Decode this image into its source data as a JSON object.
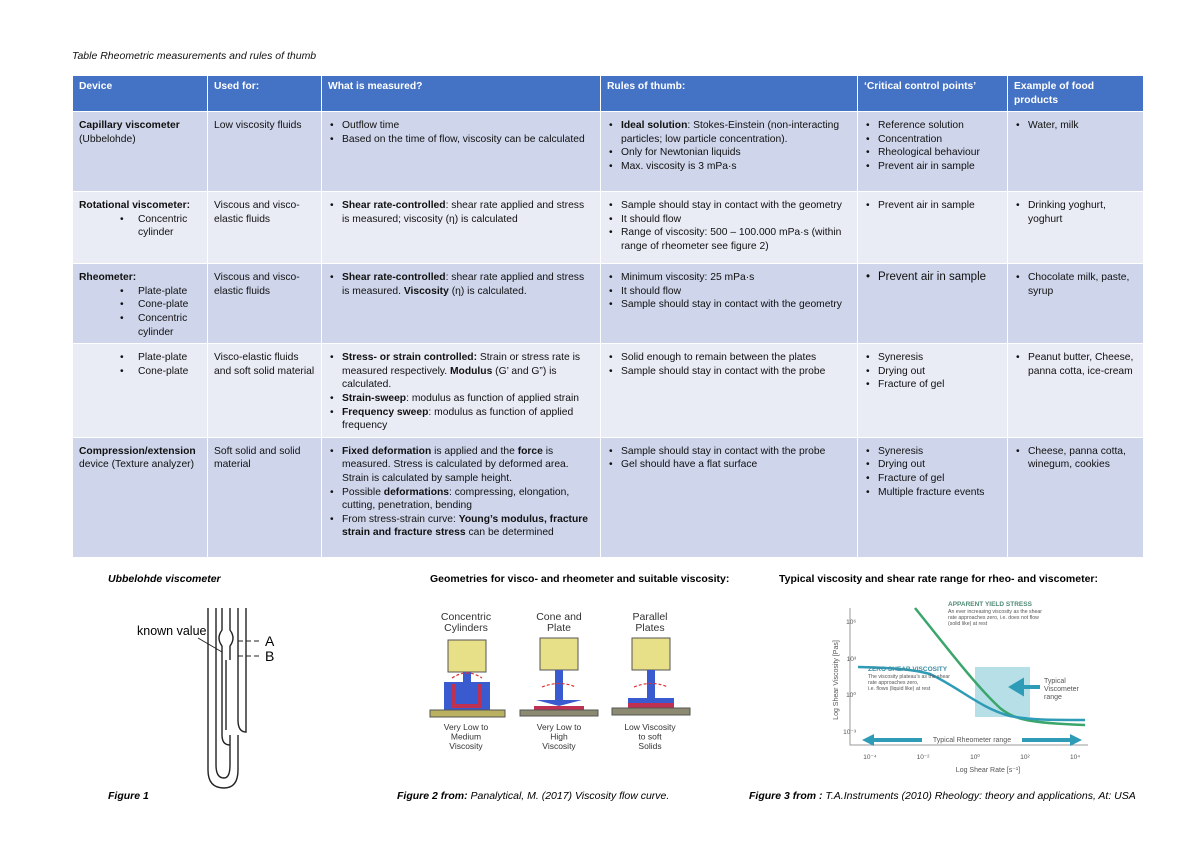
{
  "caption": "Table Rheometric measurements and rules of thumb",
  "table": {
    "header": [
      "Device",
      "Used for:",
      "What is measured?",
      "Rules of thumb:",
      "‘Critical control points’",
      "Example of food products"
    ],
    "rows": [
      [
        {
          "text": [
            [
              {
                "b": "Capillary viscometer"
              }
            ],
            [
              "(Ubbelohde)"
            ]
          ]
        },
        {
          "text": [
            [
              "Low viscosity fluids"
            ]
          ]
        },
        {
          "items": [
            [
              "Outflow time"
            ],
            [
              "Based on the time of flow, viscosity can be calculated"
            ]
          ]
        },
        {
          "items": [
            [
              {
                "b": "Ideal solution"
              },
              ": Stokes-Einstein (non-interacting particles; low particle concentration)."
            ],
            [
              "Only for Newtonian liquids"
            ],
            [
              "Max. viscosity is 3 mPa·s"
            ]
          ]
        },
        {
          "items": [
            [
              "Reference solution"
            ],
            [
              "Concentration"
            ],
            [
              "Rheological behaviour"
            ],
            [
              "Prevent air in sample"
            ]
          ]
        },
        {
          "items": [
            [
              "Water, milk"
            ]
          ]
        }
      ],
      [
        {
          "text": [
            [
              {
                "b": "Rotational viscometer:"
              }
            ]
          ],
          "items": [
            [
              "Concentric cylinder"
            ]
          ]
        },
        {
          "text": [
            [
              "Viscous and visco-elastic fluids"
            ]
          ]
        },
        {
          "items": [
            [
              {
                "b": "Shear rate-controlled"
              },
              ": shear rate applied and stress is measured; viscosity (η) is calculated"
            ]
          ]
        },
        {
          "items": [
            [
              "Sample should stay in contact with the geometry"
            ],
            [
              "It should flow"
            ],
            [
              "Range of viscosity: 500 – 100.000 mPa·s (within range of rheometer see figure 2)"
            ]
          ]
        },
        {
          "items": [
            [
              "Prevent air in sample"
            ]
          ]
        },
        {
          "items": [
            [
              "Drinking yoghurt, yoghurt"
            ]
          ]
        }
      ],
      [
        {
          "text": [
            [
              {
                "b": "Rheometer:"
              }
            ]
          ],
          "items": [
            [
              "Plate-plate"
            ],
            [
              "Cone-plate"
            ],
            [
              "Concentric cylinder"
            ]
          ]
        },
        {
          "text": [
            [
              "Viscous and visco-elastic fluids"
            ]
          ]
        },
        {
          "items": [
            [
              {
                "b": "Shear rate-controlled"
              },
              ": shear rate applied and stress is measured. ",
              {
                "b": "Viscosity"
              },
              " (η) is calculated."
            ]
          ]
        },
        {
          "items": [
            [
              "Minimum viscosity: 25 mPa·s"
            ],
            [
              "It should flow"
            ],
            [
              "Sample should stay in contact with the geometry"
            ]
          ]
        },
        {
          "items": [
            [
              "Prevent air in sample"
            ]
          ]
        },
        {
          "items": [
            [
              "Chocolate milk, paste, syrup"
            ]
          ]
        }
      ],
      [
        {
          "items": [
            [
              "Plate-plate"
            ],
            [
              "Cone-plate"
            ]
          ]
        },
        {
          "text": [
            [
              "Visco-elastic fluids and soft solid material"
            ]
          ]
        },
        {
          "items": [
            [
              {
                "b": "Stress- or strain controlled:"
              },
              " Strain or stress rate is measured respectively. ",
              {
                "b": "Modulus"
              },
              " (G’ and G”) is calculated."
            ],
            [
              {
                "b": "Strain-sweep"
              },
              ": modulus as function of applied strain"
            ],
            [
              {
                "b": "Frequency sweep"
              },
              ": modulus as function of applied frequency"
            ]
          ]
        },
        {
          "items": [
            [
              "Solid enough to remain between the plates"
            ],
            [
              "Sample should stay in contact with the probe"
            ]
          ]
        },
        {
          "items": [
            [
              "Syneresis"
            ],
            [
              "Drying out"
            ],
            [
              "Fracture of gel"
            ]
          ]
        },
        {
          "items": [
            [
              "Peanut butter, Cheese, panna cotta, ice-cream"
            ]
          ]
        }
      ],
      [
        {
          "text": [
            [
              {
                "b": "Compression/extension"
              },
              " device (Texture analyzer)"
            ]
          ]
        },
        {
          "text": [
            [
              "Soft solid and solid material"
            ]
          ]
        },
        {
          "items": [
            [
              {
                "b": "Fixed deformation"
              },
              " is applied and the ",
              {
                "b": "force"
              },
              " is measured. Stress is calculated by deformed area. Strain is calculated by sample height."
            ],
            [
              "Possible ",
              {
                "b": "deformations"
              },
              ": compressing, elongation, cutting, penetration, bending"
            ],
            [
              "From stress-strain curve: ",
              {
                "b": "Young’s modulus, fracture strain and fracture stress"
              },
              " can be determined"
            ]
          ]
        },
        {
          "items": [
            [
              "Sample should stay in contact with the probe"
            ],
            [
              "Gel should have a flat surface"
            ]
          ]
        },
        {
          "items": [
            [
              "Syneresis"
            ],
            [
              "Drying out"
            ],
            [
              "Fracture of gel"
            ],
            [
              "Multiple fracture events"
            ]
          ]
        },
        {
          "items": [
            [
              "Cheese, panna cotta, winegum, cookies"
            ]
          ]
        }
      ]
    ]
  },
  "figures": [
    {
      "title": "Ubbelohde viscometer",
      "labels": [
        "known value",
        "A",
        "B"
      ],
      "caption": [
        {
          "b": "Figure 1"
        }
      ]
    },
    {
      "title": "Geometries for visco- and rheometer and suitable viscosity:",
      "geometries": [
        {
          "name": [
            "Concentric",
            "Cylinders"
          ],
          "range": [
            "Very Low to",
            "Medium",
            "Viscosity"
          ]
        },
        {
          "name": [
            "Cone and",
            "Plate"
          ],
          "range": [
            "Very Low to",
            "High",
            "Viscosity"
          ]
        },
        {
          "name": [
            "Parallel",
            "Plates"
          ],
          "range": [
            "Low Viscosity",
            "to soft",
            "Solids"
          ]
        }
      ],
      "caption": [
        {
          "b": "Figure 2  from:"
        },
        " Panalytical, M. (2017) Viscosity flow curve."
      ]
    },
    {
      "title": "Typical viscosity and shear rate range for rheo- and viscometer:",
      "yield_title": "APPARENT YIELD STRESS",
      "yield_text": [
        "An ever increasing viscosity as the shear",
        "rate approaches zero, i.e. does not flow",
        "(solid like) at rest"
      ],
      "zero_title": "ZERO SHEAR VISCOSITY",
      "zero_text": [
        "The viscosity plateau's as the shear",
        "rate approaches zero,",
        "i.e. flows (liquid like) at rest"
      ],
      "viscometer": [
        "Typical",
        "Viscometer",
        "range"
      ],
      "rheometer": "Typical Rheometer range",
      "y_label": "Log Shear Viscosity [Pas]",
      "x_label": "Log Shear Rate [s⁻¹]",
      "yticks": [
        "10⁶",
        "10³",
        "10⁰",
        "10⁻³"
      ],
      "xticks": [
        "10⁻⁴",
        "10⁻²",
        "10⁰",
        "10²",
        "10⁴"
      ],
      "caption": [
        {
          "b": "Figure 3 from :"
        },
        " T.A.Instruments (2010) Rheology: theory and applications, At: USA"
      ]
    }
  ]
}
